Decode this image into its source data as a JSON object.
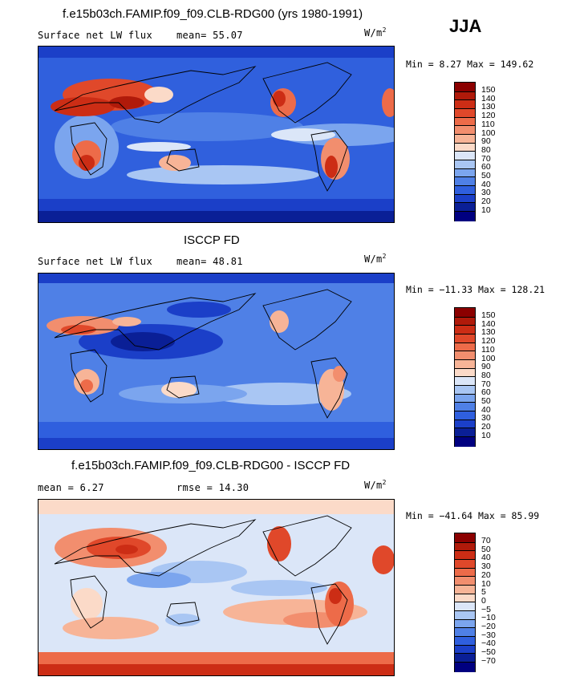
{
  "season": "JJA",
  "units_text": "W/m",
  "units_sup": "2",
  "panels": [
    {
      "title": "f.e15b03ch.FAMIP.f09_f09.CLB-RDG00 (yrs 1980-1991)",
      "left_label": "Surface net LW flux",
      "mid_label": "mean=  55.07",
      "minmax": "Min =    8.27 Max = 149.62",
      "colorbar_labels": [
        "150",
        "140",
        "130",
        "120",
        "110",
        "100",
        "90",
        "80",
        "70",
        "60",
        "50",
        "40",
        "30",
        "20",
        "10"
      ]
    },
    {
      "title": "ISCCP FD",
      "left_label": "Surface net LW flux",
      "mid_label": "mean=  48.81",
      "minmax": "Min = −11.33 Max = 128.21",
      "colorbar_labels": [
        "150",
        "140",
        "130",
        "120",
        "110",
        "100",
        "90",
        "80",
        "70",
        "60",
        "50",
        "40",
        "30",
        "20",
        "10"
      ]
    },
    {
      "title": "f.e15b03ch.FAMIP.f09_f09.CLB-RDG00 - ISCCP FD",
      "left_label": "mean =   6.27",
      "mid_label": "rmse =  14.30",
      "minmax": "Min = −41.64 Max =  85.99",
      "colorbar_labels": [
        "70",
        "50",
        "40",
        "30",
        "20",
        "10",
        "5",
        "0",
        "−5",
        "−10",
        "−20",
        "−30",
        "−40",
        "−50",
        "−70"
      ]
    }
  ],
  "colors": {
    "abs_scale": [
      "#8b0000",
      "#b01a0a",
      "#cc2d15",
      "#e0482a",
      "#ed6b49",
      "#f28e6e",
      "#f7b497",
      "#fbdac8",
      "#dbe6f8",
      "#a9c6f3",
      "#7ba5ee",
      "#4f80e6",
      "#2f5fde",
      "#1b3fc8",
      "#0a1f96",
      "#000080"
    ],
    "diff_scale": [
      "#8b0000",
      "#b01a0a",
      "#cc2d15",
      "#e0482a",
      "#ed6b49",
      "#f28e6e",
      "#f7b497",
      "#fbdac8",
      "#dbe6f8",
      "#a9c6f3",
      "#7ba5ee",
      "#4f80e6",
      "#2f5fde",
      "#1b3fc8",
      "#0a1f96",
      "#000080"
    ]
  }
}
